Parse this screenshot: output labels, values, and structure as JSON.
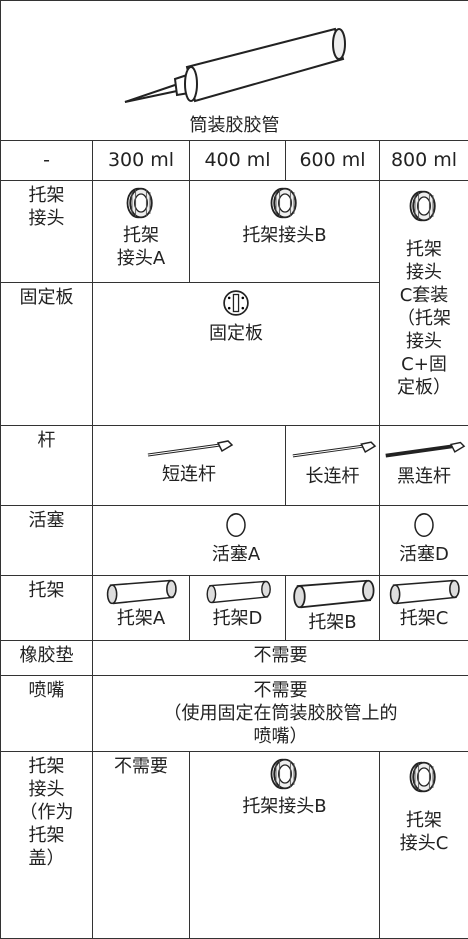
{
  "header": {
    "caption": "筒装胶胶管"
  },
  "table": {
    "columns": [
      "-",
      "300 ml",
      "400 ml",
      "600 ml",
      "800 ml"
    ],
    "rows": [
      {
        "label": [
          "托架",
          "接头"
        ],
        "cells": [
          [
            "托架",
            "接头A"
          ],
          [
            "托架接头B"
          ],
          [
            "托架",
            "接头",
            "C套装",
            "（托架",
            "接头",
            "C+固",
            "定板）"
          ]
        ]
      },
      {
        "label": [
          "固定板"
        ],
        "cells": [
          [
            "固定板"
          ]
        ]
      },
      {
        "label": [
          "杆"
        ],
        "cells": [
          [
            "短连杆"
          ],
          [
            "长连杆"
          ],
          [
            "黑连杆"
          ]
        ]
      },
      {
        "label": [
          "活塞"
        ],
        "cells": [
          [
            "活塞A"
          ],
          [
            "活塞D"
          ]
        ]
      },
      {
        "label": [
          "托架"
        ],
        "cells": [
          [
            "托架A"
          ],
          [
            "托架D"
          ],
          [
            "托架B"
          ],
          [
            "托架C"
          ]
        ]
      },
      {
        "label": [
          "橡胶垫"
        ],
        "cells": [
          [
            "不需要"
          ]
        ]
      },
      {
        "label": [
          "喷嘴"
        ],
        "cells": [
          [
            "不需要",
            "（使用固定在筒装胶胶管上的",
            "喷嘴）"
          ]
        ]
      },
      {
        "label": [
          "托架",
          "接头",
          "（作为",
          "托架",
          "盖）"
        ],
        "cells": [
          [
            "不需要"
          ],
          [
            "托架接头B"
          ],
          [
            "托架",
            "接头C"
          ]
        ]
      }
    ]
  }
}
